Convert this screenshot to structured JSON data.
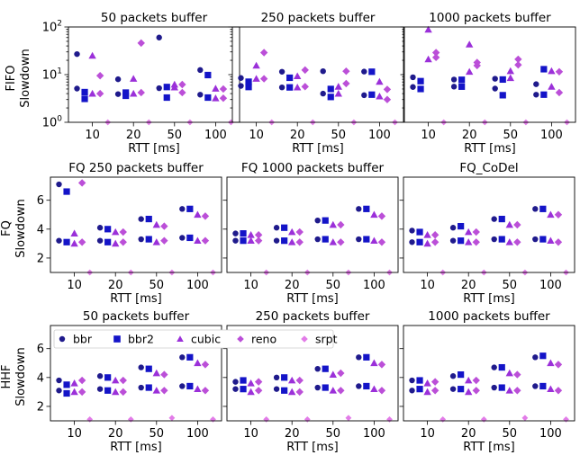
{
  "colors": {
    "bbr": "#1f1a8c",
    "bbr2": "#1414c8",
    "cubic": "#9b30d9",
    "reno": "#bb4fd8",
    "srpt": "#e27ce8"
  },
  "legend": [
    {
      "name": "bbr",
      "marker": "circle",
      "color": "#1f1a8c"
    },
    {
      "name": "bbr2",
      "marker": "square",
      "color": "#1414c8"
    },
    {
      "name": "cubic",
      "marker": "triangle",
      "color": "#9b30d9"
    },
    {
      "name": "reno",
      "marker": "diamond",
      "color": "#bb4fd8"
    },
    {
      "name": "srpt",
      "marker": "diamond",
      "color": "#e27ce8"
    }
  ],
  "rows": [
    {
      "ylabel_top": "FIFO",
      "ylabel_bottom": "Slowdown"
    },
    {
      "ylabel_top": "FQ",
      "ylabel_bottom": "Slowdown"
    },
    {
      "ylabel_top": "HHF",
      "ylabel_bottom": "Slowdown"
    }
  ],
  "chart_data": [
    {
      "type": "scatter",
      "title": "50 packets buffer",
      "xlabel": "RTT [ms]",
      "ylabel": "FIFO Slowdown",
      "yscale": "log",
      "ylim": [
        1,
        100
      ],
      "categories": [
        "10",
        "20",
        "50",
        "100"
      ],
      "series": [
        {
          "name": "bbr",
          "values": [
            [
              5.1,
              27
            ],
            [
              3.9,
              8
            ],
            [
              5.2,
              60
            ],
            [
              3.8,
              12.5
            ]
          ]
        },
        {
          "name": "bbr2",
          "values": [
            [
              3.1,
              4.3
            ],
            [
              3.6,
              4.2
            ],
            [
              5.5,
              3.3
            ],
            [
              3.3,
              9.8
            ]
          ]
        },
        {
          "name": "cubic",
          "values": [
            [
              4.0,
              25
            ],
            [
              4.0,
              8.2
            ],
            [
              6.2,
              5.4
            ],
            [
              3.2,
              5.1
            ]
          ]
        },
        {
          "name": "reno",
          "values": [
            [
              4.0,
              9.5
            ],
            [
              4.2,
              46
            ],
            [
              6.2,
              4.2
            ],
            [
              3.2,
              5.0
            ]
          ]
        },
        {
          "name": "srpt",
          "values": [
            1.0,
            1.0,
            1.0,
            1.0
          ]
        }
      ]
    },
    {
      "type": "scatter",
      "title": "250 packets buffer",
      "xlabel": "RTT [ms]",
      "ylabel": "",
      "yscale": "log",
      "ylim": [
        1,
        100
      ],
      "categories": [
        "10",
        "20",
        "50",
        "100"
      ],
      "series": [
        {
          "name": "bbr",
          "values": [
            [
              8.5,
              5.8
            ],
            [
              11.5,
              5.4
            ],
            [
              11.8,
              4.0
            ],
            [
              11.6,
              3.7
            ]
          ]
        },
        {
          "name": "bbr2",
          "values": [
            [
              5.5,
              7.1
            ],
            [
              5.4,
              8.6
            ],
            [
              3.4,
              5.0
            ],
            [
              11.5,
              3.8
            ]
          ]
        },
        {
          "name": "cubic",
          "values": [
            [
              15.5,
              8.2
            ],
            [
              5.4,
              9.3
            ],
            [
              4.0,
              5.6
            ],
            [
              3.5,
              7.1
            ]
          ]
        },
        {
          "name": "reno",
          "values": [
            [
              29,
              8.2
            ],
            [
              12.5,
              5.6
            ],
            [
              11.8,
              6.5
            ],
            [
              3.0,
              4.9
            ]
          ]
        },
        {
          "name": "srpt",
          "values": [
            1.0,
            1.0,
            1.0,
            1.0
          ]
        }
      ]
    },
    {
      "type": "scatter",
      "title": "1000 packets buffer",
      "xlabel": "RTT [ms]",
      "ylabel": "",
      "yscale": "log",
      "ylim": [
        1,
        100
      ],
      "categories": [
        "10",
        "20",
        "50",
        "100"
      ],
      "series": [
        {
          "name": "bbr",
          "values": [
            [
              8.8,
              5.5
            ],
            [
              7.9,
              5.6
            ],
            [
              8.2,
              5.1
            ],
            [
              6.3,
              3.8
            ]
          ]
        },
        {
          "name": "bbr2",
          "values": [
            [
              7.3,
              5.0
            ],
            [
              7.8,
              5.6
            ],
            [
              7.9,
              3.7
            ],
            [
              13.0,
              3.8
            ]
          ]
        },
        {
          "name": "cubic",
          "values": [
            [
              88,
              21
            ],
            [
              43,
              11.5
            ],
            [
              11.9,
              8.5
            ],
            [
              11.9,
              5.6
            ]
          ]
        },
        {
          "name": "reno",
          "values": [
            [
              29,
              23
            ],
            [
              15.5,
              18
            ],
            [
              16,
              21
            ],
            [
              11.5,
              4.2
            ]
          ]
        },
        {
          "name": "srpt",
          "values": [
            1.0,
            1.0,
            1.0,
            1.0
          ]
        }
      ]
    },
    {
      "type": "scatter",
      "title": "FQ 250 packets buffer",
      "xlabel": "RTT [ms]",
      "ylabel": "FQ Slowdown",
      "yscale": "linear",
      "ylim": [
        1,
        7.6
      ],
      "yticks": [
        2,
        4,
        6
      ],
      "categories": [
        "10",
        "20",
        "50",
        "100"
      ],
      "series": [
        {
          "name": "bbr",
          "values": [
            [
              7.1,
              3.2
            ],
            [
              4.1,
              3.2
            ],
            [
              4.7,
              3.3
            ],
            [
              5.4,
              3.4
            ]
          ]
        },
        {
          "name": "bbr2",
          "values": [
            [
              6.6,
              3.1
            ],
            [
              4.0,
              3.1
            ],
            [
              4.7,
              3.3
            ],
            [
              5.4,
              3.4
            ]
          ]
        },
        {
          "name": "cubic",
          "values": [
            [
              3.7,
              3.0
            ],
            [
              3.8,
              3.0
            ],
            [
              4.3,
              3.1
            ],
            [
              5.0,
              3.2
            ]
          ]
        },
        {
          "name": "reno",
          "values": [
            [
              7.2,
              3.1
            ],
            [
              3.8,
              3.1
            ],
            [
              4.2,
              3.2
            ],
            [
              4.9,
              3.2
            ]
          ]
        },
        {
          "name": "srpt",
          "values": [
            1.0,
            1.0,
            1.0,
            1.0
          ]
        }
      ]
    },
    {
      "type": "scatter",
      "title": "FQ 1000 packets buffer",
      "xlabel": "RTT [ms]",
      "ylabel": "",
      "yscale": "linear",
      "ylim": [
        1,
        7.6
      ],
      "yticks": [
        2,
        4,
        6
      ],
      "categories": [
        "10",
        "20",
        "50",
        "100"
      ],
      "series": [
        {
          "name": "bbr",
          "values": [
            [
              3.7,
              3.2
            ],
            [
              4.1,
              3.2
            ],
            [
              4.6,
              3.3
            ],
            [
              5.4,
              3.3
            ]
          ]
        },
        {
          "name": "bbr2",
          "values": [
            [
              3.7,
              3.2
            ],
            [
              4.1,
              3.2
            ],
            [
              4.6,
              3.3
            ],
            [
              5.4,
              3.3
            ]
          ]
        },
        {
          "name": "cubic",
          "values": [
            [
              3.6,
              3.2
            ],
            [
              3.8,
              3.1
            ],
            [
              4.3,
              3.1
            ],
            [
              5.0,
              3.2
            ]
          ]
        },
        {
          "name": "reno",
          "values": [
            [
              3.6,
              3.2
            ],
            [
              3.8,
              3.1
            ],
            [
              4.3,
              3.1
            ],
            [
              4.9,
              3.1
            ]
          ]
        },
        {
          "name": "srpt",
          "values": [
            1.0,
            1.0,
            1.0,
            1.0
          ]
        }
      ]
    },
    {
      "type": "scatter",
      "title": "FQ_CoDel",
      "xlabel": "RTT [ms]",
      "ylabel": "",
      "yscale": "linear",
      "ylim": [
        1,
        7.6
      ],
      "yticks": [
        2,
        4,
        6
      ],
      "categories": [
        "10",
        "20",
        "50",
        "100"
      ],
      "series": [
        {
          "name": "bbr",
          "values": [
            [
              3.9,
              3.1
            ],
            [
              4.1,
              3.2
            ],
            [
              4.7,
              3.3
            ],
            [
              5.4,
              3.3
            ]
          ]
        },
        {
          "name": "bbr2",
          "values": [
            [
              3.8,
              3.1
            ],
            [
              4.2,
              3.2
            ],
            [
              4.7,
              3.3
            ],
            [
              5.4,
              3.3
            ]
          ]
        },
        {
          "name": "cubic",
          "values": [
            [
              3.6,
              3.0
            ],
            [
              3.8,
              3.1
            ],
            [
              4.3,
              3.1
            ],
            [
              5.0,
              3.2
            ]
          ]
        },
        {
          "name": "reno",
          "values": [
            [
              3.6,
              3.1
            ],
            [
              3.8,
              3.1
            ],
            [
              4.3,
              3.1
            ],
            [
              5.0,
              3.1
            ]
          ]
        },
        {
          "name": "srpt",
          "values": [
            1.0,
            1.0,
            1.0,
            1.0
          ]
        }
      ]
    },
    {
      "type": "scatter",
      "title": "50 packets buffer",
      "xlabel": "RTT [ms]",
      "ylabel": "HHF Slowdown",
      "yscale": "linear",
      "ylim": [
        1,
        7.6
      ],
      "yticks": [
        2,
        4,
        6
      ],
      "categories": [
        "10",
        "20",
        "50",
        "100"
      ],
      "series": [
        {
          "name": "bbr",
          "values": [
            [
              3.8,
              3.1
            ],
            [
              4.1,
              3.2
            ],
            [
              4.7,
              3.3
            ],
            [
              5.4,
              3.4
            ]
          ]
        },
        {
          "name": "bbr2",
          "values": [
            [
              3.5,
              2.9
            ],
            [
              4.0,
              3.1
            ],
            [
              4.6,
              3.3
            ],
            [
              5.4,
              3.4
            ]
          ]
        },
        {
          "name": "cubic",
          "values": [
            [
              3.6,
              3.0
            ],
            [
              3.8,
              3.0
            ],
            [
              4.3,
              3.1
            ],
            [
              5.0,
              3.2
            ]
          ]
        },
        {
          "name": "reno",
          "values": [
            [
              3.8,
              3.0
            ],
            [
              3.8,
              3.0
            ],
            [
              4.2,
              3.1
            ],
            [
              4.9,
              3.1
            ]
          ]
        },
        {
          "name": "srpt",
          "values": [
            1.1,
            1.1,
            1.2,
            1.1
          ]
        }
      ]
    },
    {
      "type": "scatter",
      "title": "250 packets buffer",
      "xlabel": "RTT [ms]",
      "ylabel": "",
      "yscale": "linear",
      "ylim": [
        1,
        7.6
      ],
      "yticks": [
        2,
        4,
        6
      ],
      "categories": [
        "10",
        "20",
        "50",
        "100"
      ],
      "series": [
        {
          "name": "bbr",
          "values": [
            [
              3.7,
              3.2
            ],
            [
              4.0,
              3.2
            ],
            [
              4.6,
              3.3
            ],
            [
              5.4,
              3.4
            ]
          ]
        },
        {
          "name": "bbr2",
          "values": [
            [
              3.8,
              3.2
            ],
            [
              4.0,
              3.1
            ],
            [
              4.6,
              3.3
            ],
            [
              5.4,
              3.4
            ]
          ]
        },
        {
          "name": "cubic",
          "values": [
            [
              3.6,
              3.0
            ],
            [
              3.8,
              3.0
            ],
            [
              4.2,
              3.1
            ],
            [
              5.0,
              3.2
            ]
          ]
        },
        {
          "name": "reno",
          "values": [
            [
              3.7,
              3.1
            ],
            [
              3.8,
              3.0
            ],
            [
              4.3,
              3.1
            ],
            [
              4.9,
              3.1
            ]
          ]
        },
        {
          "name": "srpt",
          "values": [
            1.1,
            1.1,
            1.2,
            1.1
          ]
        }
      ]
    },
    {
      "type": "scatter",
      "title": "1000 packets buffer",
      "xlabel": "RTT [ms]",
      "ylabel": "",
      "yscale": "linear",
      "ylim": [
        1,
        7.6
      ],
      "yticks": [
        2,
        4,
        6
      ],
      "categories": [
        "10",
        "20",
        "50",
        "100"
      ],
      "series": [
        {
          "name": "bbr",
          "values": [
            [
              3.8,
              3.1
            ],
            [
              4.1,
              3.2
            ],
            [
              4.7,
              3.3
            ],
            [
              5.4,
              3.4
            ]
          ]
        },
        {
          "name": "bbr2",
          "values": [
            [
              3.8,
              3.2
            ],
            [
              4.2,
              3.2
            ],
            [
              4.7,
              3.3
            ],
            [
              5.5,
              3.4
            ]
          ]
        },
        {
          "name": "cubic",
          "values": [
            [
              3.6,
              3.0
            ],
            [
              3.8,
              3.0
            ],
            [
              4.3,
              3.1
            ],
            [
              5.0,
              3.2
            ]
          ]
        },
        {
          "name": "reno",
          "values": [
            [
              3.7,
              3.1
            ],
            [
              3.8,
              3.1
            ],
            [
              4.2,
              3.1
            ],
            [
              4.9,
              3.1
            ]
          ]
        },
        {
          "name": "srpt",
          "values": [
            1.1,
            1.1,
            1.2,
            1.1
          ]
        }
      ]
    }
  ]
}
